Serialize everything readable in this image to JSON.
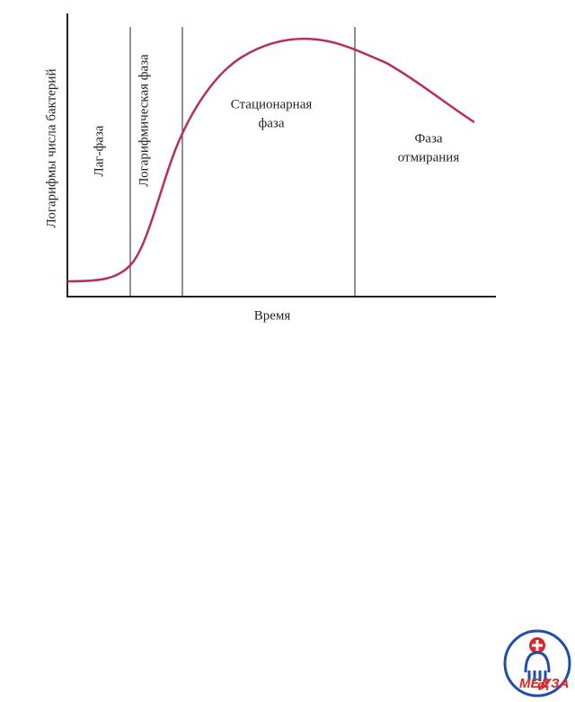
{
  "diagram": {
    "y_axis_label": "Логарифмы числа бактерий",
    "x_axis_label": "Время",
    "phases": [
      {
        "lines": [
          "Лаг-фаза"
        ]
      },
      {
        "lines": [
          "Логарифмическая фаза"
        ]
      },
      {
        "lines": [
          "Стационарная",
          "фаза"
        ]
      },
      {
        "lines": [
          "Фаза",
          "отмирания"
        ]
      }
    ]
  },
  "logo": {
    "text_left": "МЕД",
    "text_small": "о",
    "text_right": "УЗА"
  }
}
